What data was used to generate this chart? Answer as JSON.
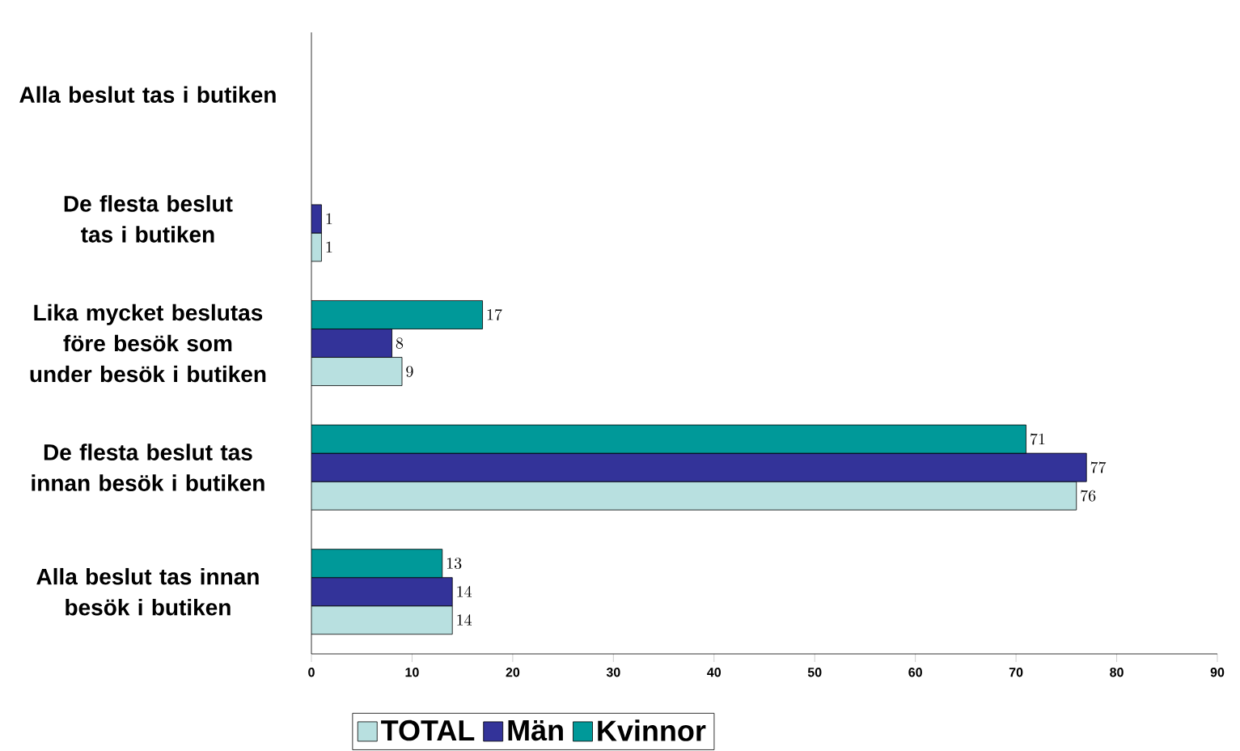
{
  "chart_data": {
    "type": "bar",
    "orientation": "horizontal",
    "categories": [
      "Alla beslut tas i butiken",
      "De flesta beslut tas i butiken",
      "Lika mycket beslutas före besök som under besök i butiken",
      "De flesta beslut tas innan besök i butiken",
      "Alla beslut tas innan besök i butiken"
    ],
    "series": [
      {
        "name": "TOTAL",
        "color": "#b8e0e0",
        "values": [
          null,
          1,
          9,
          76,
          14
        ]
      },
      {
        "name": "Män",
        "color": "#333399",
        "values": [
          null,
          1,
          8,
          77,
          14
        ]
      },
      {
        "name": "Kvinnor",
        "color": "#009999",
        "values": [
          null,
          null,
          17,
          71,
          13
        ]
      }
    ],
    "xlim": [
      0,
      90
    ],
    "xticks": [
      0,
      10,
      20,
      30,
      40,
      50,
      60,
      70,
      80,
      90
    ],
    "data_labels": true,
    "grid": false,
    "legend": "bottom"
  }
}
